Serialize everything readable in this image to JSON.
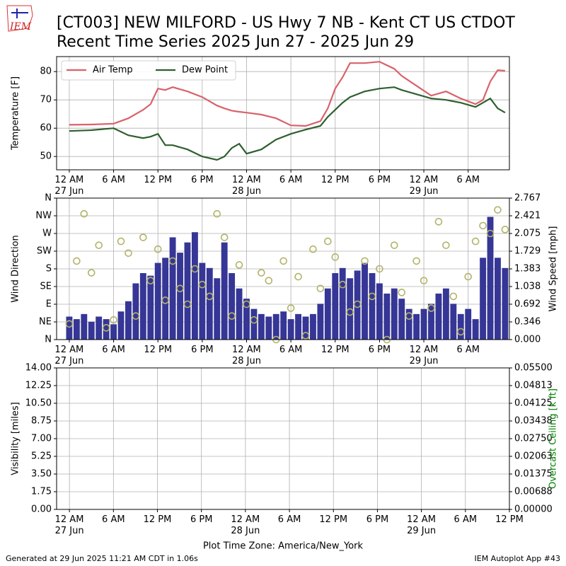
{
  "title": "[CT003] NEW MILFORD - US Hwy 7 NB - Kent CT US  CTDOT",
  "subtitle": "Recent Time Series 2025 Jun 27 - 2025 Jun 29",
  "logo_text": "IEM",
  "footer_left": "Generated at 29 Jun 2025 11:21 AM CDT in 1.06s",
  "footer_right": "IEM Autoplot App #43",
  "chart_data": [
    {
      "type": "line",
      "ylabel": "Temperature [F]",
      "grid": true,
      "legend": "upper left",
      "xlim": [
        "2025-06-26T22:17",
        "2025-06-29T11:35"
      ],
      "xticks": [
        {
          "value": "2025-06-27T00:00",
          "label": "12 AM\n27 Jun"
        },
        {
          "value": "2025-06-27T06:00",
          "label": "6 AM"
        },
        {
          "value": "2025-06-27T12:00",
          "label": "12 PM"
        },
        {
          "value": "2025-06-27T18:00",
          "label": "6 PM"
        },
        {
          "value": "2025-06-28T00:00",
          "label": "12 AM\n28 Jun"
        },
        {
          "value": "2025-06-28T06:00",
          "label": "6 AM"
        },
        {
          "value": "2025-06-28T12:00",
          "label": "12 PM"
        },
        {
          "value": "2025-06-28T18:00",
          "label": "6 PM"
        },
        {
          "value": "2025-06-29T00:00",
          "label": "12 AM\n29 Jun"
        },
        {
          "value": "2025-06-29T06:00",
          "label": "6 AM"
        }
      ],
      "ylim": [
        45.3,
        85.3
      ],
      "yticks": [
        50,
        60,
        70,
        80
      ],
      "x": [
        "2025-06-27T00:00",
        "2025-06-27T03:00",
        "2025-06-27T06:00",
        "2025-06-27T08:00",
        "2025-06-27T10:00",
        "2025-06-27T11:00",
        "2025-06-27T12:00",
        "2025-06-27T13:00",
        "2025-06-27T14:00",
        "2025-06-27T16:00",
        "2025-06-27T18:00",
        "2025-06-27T20:00",
        "2025-06-27T21:00",
        "2025-06-27T22:00",
        "2025-06-27T23:00",
        "2025-06-28T00:00",
        "2025-06-28T02:00",
        "2025-06-28T04:00",
        "2025-06-28T06:00",
        "2025-06-28T08:00",
        "2025-06-28T10:00",
        "2025-06-28T11:00",
        "2025-06-28T12:00",
        "2025-06-28T13:00",
        "2025-06-28T14:00",
        "2025-06-28T16:00",
        "2025-06-28T18:00",
        "2025-06-28T20:00",
        "2025-06-28T21:00",
        "2025-06-28T23:00",
        "2025-06-29T01:00",
        "2025-06-29T03:00",
        "2025-06-29T05:00",
        "2025-06-29T07:00",
        "2025-06-29T08:00",
        "2025-06-29T09:00",
        "2025-06-29T10:00",
        "2025-06-29T11:00"
      ],
      "series": [
        {
          "name": "Air Temp",
          "color": "#d9626a",
          "values": [
            61.2,
            61.3,
            61.6,
            63.5,
            66.5,
            68.5,
            74,
            73.5,
            74.5,
            73,
            71,
            68,
            67,
            66.2,
            65.8,
            65.5,
            64.8,
            63.5,
            61,
            60.8,
            62.5,
            67,
            74,
            78,
            83,
            83,
            83.5,
            81,
            78.5,
            75,
            71.5,
            73,
            70.5,
            68.5,
            70,
            76.5,
            80.5,
            80.3
          ]
        },
        {
          "name": "Dew Point",
          "color": "#2f5f2f",
          "values": [
            59,
            59.3,
            60,
            57.5,
            56.5,
            57,
            58,
            54,
            54,
            52.5,
            50,
            48.8,
            50,
            53,
            54.5,
            51,
            52.5,
            56,
            58,
            59.5,
            60.8,
            64,
            66.5,
            69,
            71,
            73,
            74,
            74.5,
            73.5,
            72,
            70.5,
            70,
            69,
            67.5,
            69,
            70.5,
            67,
            65.5
          ]
        }
      ]
    },
    {
      "type": "combo",
      "ylabel": "Wind Direction",
      "y2label": "Wind Speed [mph]",
      "grid": true,
      "xlim": [
        "2025-06-26T22:17",
        "2025-06-29T11:35"
      ],
      "xticks": [
        {
          "value": "2025-06-27T00:00",
          "label": "12 AM\n27 Jun"
        },
        {
          "value": "2025-06-27T06:00",
          "label": "6 AM"
        },
        {
          "value": "2025-06-27T12:00",
          "label": "12 PM"
        },
        {
          "value": "2025-06-27T18:00",
          "label": "6 PM"
        },
        {
          "value": "2025-06-28T00:00",
          "label": "12 AM\n28 Jun"
        },
        {
          "value": "2025-06-28T06:00",
          "label": "6 AM"
        },
        {
          "value": "2025-06-28T12:00",
          "label": "12 PM"
        },
        {
          "value": "2025-06-28T18:00",
          "label": "6 PM"
        },
        {
          "value": "2025-06-29T00:00",
          "label": "12 AM\n29 Jun"
        },
        {
          "value": "2025-06-29T06:00",
          "label": "6 AM"
        }
      ],
      "ylim": [
        0,
        360
      ],
      "yticks": [
        {
          "value": 0,
          "label": "N"
        },
        {
          "value": 45,
          "label": "NE"
        },
        {
          "value": 90,
          "label": "E"
        },
        {
          "value": 135,
          "label": "SE"
        },
        {
          "value": 180,
          "label": "S"
        },
        {
          "value": 225,
          "label": "SW"
        },
        {
          "value": 270,
          "label": "W"
        },
        {
          "value": 315,
          "label": "NW"
        },
        {
          "value": 360,
          "label": "N"
        }
      ],
      "y2lim": [
        0,
        2.767
      ],
      "y2ticks": [
        {
          "value": 0,
          "label": "0.000"
        },
        0.346,
        0.692,
        1.038,
        1.383,
        1.729,
        2.075,
        2.421,
        2.767
      ],
      "x": [
        "2025-06-27T00:00",
        "2025-06-27T01:00",
        "2025-06-27T02:00",
        "2025-06-27T03:00",
        "2025-06-27T04:00",
        "2025-06-27T05:00",
        "2025-06-27T06:00",
        "2025-06-27T07:00",
        "2025-06-27T08:00",
        "2025-06-27T09:00",
        "2025-06-27T10:00",
        "2025-06-27T11:00",
        "2025-06-27T12:00",
        "2025-06-27T13:00",
        "2025-06-27T14:00",
        "2025-06-27T15:00",
        "2025-06-27T16:00",
        "2025-06-27T17:00",
        "2025-06-27T18:00",
        "2025-06-27T19:00",
        "2025-06-27T20:00",
        "2025-06-27T21:00",
        "2025-06-27T22:00",
        "2025-06-27T23:00",
        "2025-06-28T00:00",
        "2025-06-28T01:00",
        "2025-06-28T02:00",
        "2025-06-28T03:00",
        "2025-06-28T04:00",
        "2025-06-28T05:00",
        "2025-06-28T06:00",
        "2025-06-28T07:00",
        "2025-06-28T08:00",
        "2025-06-28T09:00",
        "2025-06-28T10:00",
        "2025-06-28T11:00",
        "2025-06-28T12:00",
        "2025-06-28T13:00",
        "2025-06-28T14:00",
        "2025-06-28T15:00",
        "2025-06-28T16:00",
        "2025-06-28T17:00",
        "2025-06-28T18:00",
        "2025-06-28T19:00",
        "2025-06-28T20:00",
        "2025-06-28T21:00",
        "2025-06-28T22:00",
        "2025-06-28T23:00",
        "2025-06-29T00:00",
        "2025-06-29T01:00",
        "2025-06-29T02:00",
        "2025-06-29T03:00",
        "2025-06-29T04:00",
        "2025-06-29T05:00",
        "2025-06-29T06:00",
        "2025-06-29T07:00",
        "2025-06-29T08:00",
        "2025-06-29T09:00",
        "2025-06-29T10:00",
        "2025-06-29T11:00"
      ],
      "series": [
        {
          "type": "bar",
          "axis": "y2",
          "color": "#363696",
          "values": [
            0.45,
            0.4,
            0.5,
            0.35,
            0.45,
            0.4,
            0.3,
            0.55,
            0.75,
            1.1,
            1.3,
            1.25,
            1.5,
            1.6,
            2.0,
            1.7,
            1.9,
            2.1,
            1.5,
            1.4,
            1.2,
            1.9,
            1.3,
            1.0,
            0.8,
            0.6,
            0.5,
            0.45,
            0.5,
            0.55,
            0.4,
            0.5,
            0.45,
            0.5,
            0.7,
            1.0,
            1.3,
            1.4,
            1.2,
            1.35,
            1.5,
            1.3,
            1.1,
            0.9,
            1.0,
            0.8,
            0.6,
            0.5,
            0.6,
            0.7,
            0.9,
            1.0,
            0.7,
            0.5,
            0.6,
            0.4,
            1.6,
            2.4,
            1.6,
            1.4
          ]
        },
        {
          "type": "scatter",
          "color": "#b3b36b",
          "values": [
            40,
            200,
            320,
            170,
            240,
            30,
            50,
            250,
            220,
            60,
            260,
            150,
            230,
            100,
            200,
            130,
            90,
            180,
            140,
            110,
            320,
            260,
            60,
            190,
            90,
            50,
            170,
            150,
            0,
            200,
            80,
            160,
            10,
            230,
            130,
            250,
            210,
            140,
            70,
            90,
            200,
            110,
            180,
            0,
            240,
            120,
            60,
            200,
            150,
            80,
            300,
            240,
            110,
            20,
            160,
            250,
            290,
            270,
            330,
            280
          ]
        }
      ]
    },
    {
      "type": "line",
      "ylabel": "Visibility [miles]",
      "y2label": "Overcast Ceiling [k ft]",
      "y2label_color": "green",
      "grid": true,
      "xlabel": "Plot Time Zone: America/New_York",
      "xlim": [
        "2025-06-26T22:15",
        "2025-06-29T12:00"
      ],
      "xticks": [
        {
          "value": "2025-06-27T00:00",
          "label": "12 AM\n27 Jun"
        },
        {
          "value": "2025-06-27T06:00",
          "label": "6 AM"
        },
        {
          "value": "2025-06-27T12:00",
          "label": "12 PM"
        },
        {
          "value": "2025-06-27T18:00",
          "label": "6 PM"
        },
        {
          "value": "2025-06-28T00:00",
          "label": "12 AM\n28 Jun"
        },
        {
          "value": "2025-06-28T06:00",
          "label": "6 AM"
        },
        {
          "value": "2025-06-28T12:00",
          "label": "12 PM"
        },
        {
          "value": "2025-06-28T18:00",
          "label": "6 PM"
        },
        {
          "value": "2025-06-29T00:00",
          "label": "12 AM\n29 Jun"
        },
        {
          "value": "2025-06-29T06:00",
          "label": "6 AM"
        },
        {
          "value": "2025-06-29T12:00",
          "label": "12 PM"
        }
      ],
      "ylim": [
        0,
        14
      ],
      "yticks": [
        {
          "value": 0,
          "label": "0.00"
        },
        1.75,
        {
          "value": 3.5,
          "label": "3.50"
        },
        5.25,
        {
          "value": 7,
          "label": "7.00"
        },
        8.75,
        {
          "value": 10.5,
          "label": "10.50"
        },
        12.25,
        {
          "value": 14,
          "label": "14.00"
        }
      ],
      "y2lim": [
        0,
        0.055
      ],
      "y2ticks": [
        {
          "value": 0,
          "label": "0.00000"
        },
        0.00688,
        0.01375,
        0.02063,
        {
          "value": 0.0275,
          "label": "0.02750"
        },
        0.03438,
        0.04125,
        0.04813,
        {
          "value": 0.055,
          "label": "0.05500"
        }
      ],
      "series": []
    }
  ]
}
